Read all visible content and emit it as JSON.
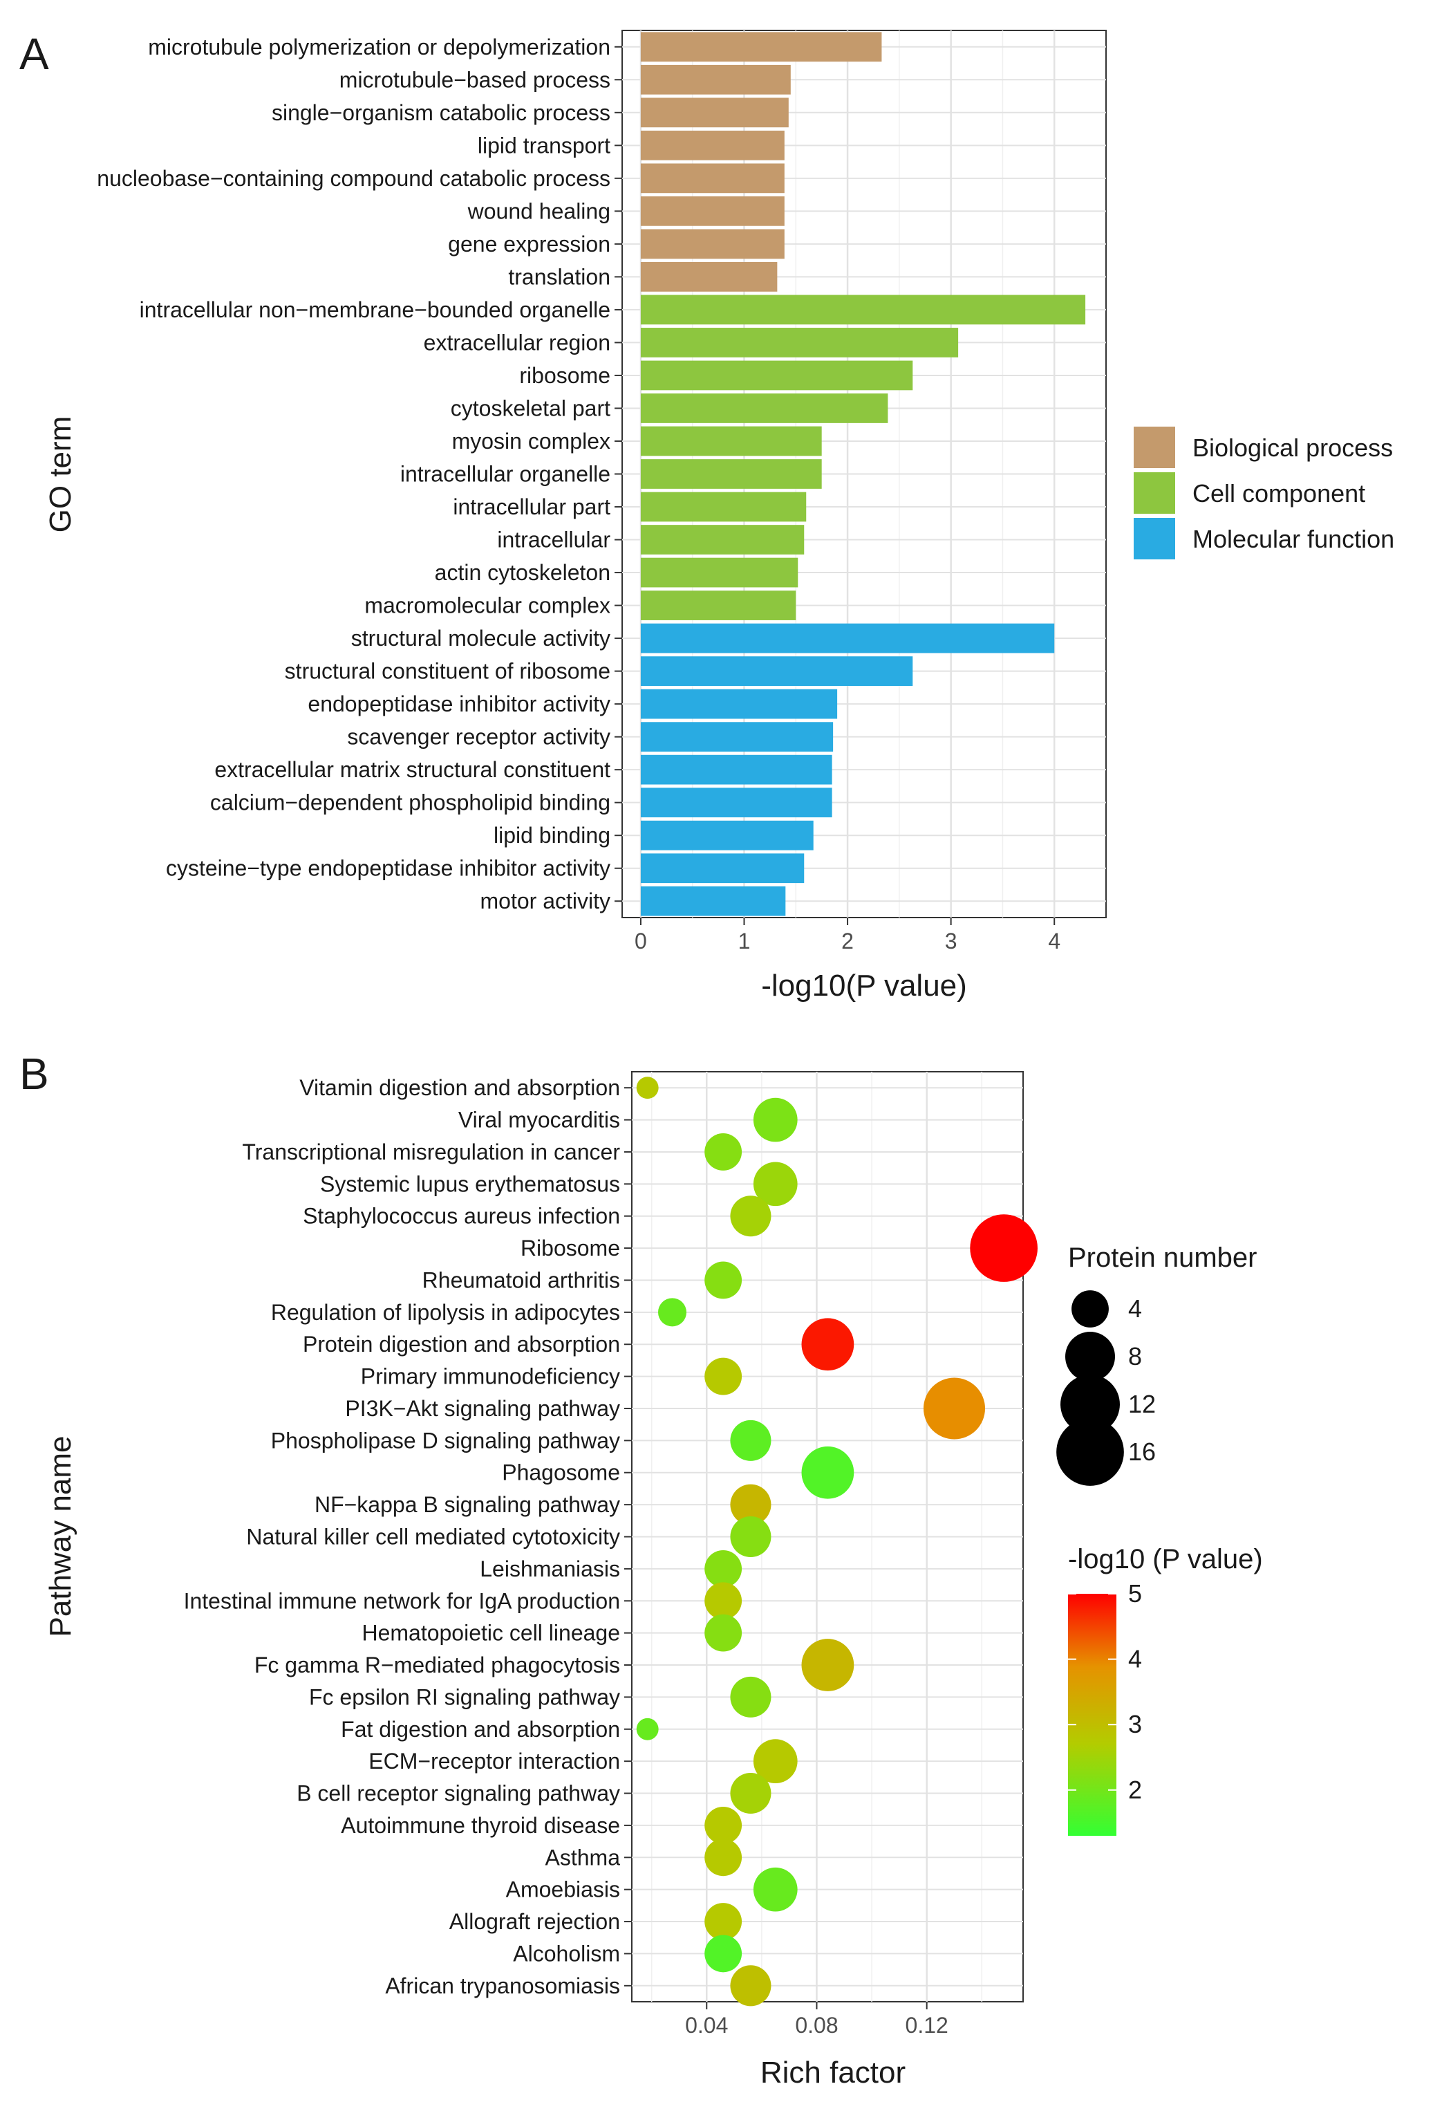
{
  "panels": {
    "a": {
      "letter": "A"
    },
    "b": {
      "letter": "B"
    }
  },
  "chart_data": [
    {
      "type": "bar",
      "orientation": "horizontal",
      "xlabel": "-log10(P value)",
      "ylabel": "GO term",
      "xlim": [
        -0.18,
        4.5
      ],
      "xticks": [
        0,
        1,
        2,
        3,
        4
      ],
      "grid": true,
      "legend_position": "right",
      "groups": [
        {
          "name": "Biological process",
          "color": "#c49a6c"
        },
        {
          "name": "Cell component",
          "color": "#8dc63f"
        },
        {
          "name": "Molecular function",
          "color": "#29abe2"
        }
      ],
      "bars": [
        {
          "label": "microtubule polymerization or depolymerization",
          "value": 2.33,
          "group": "Biological process"
        },
        {
          "label": "microtubule-based process",
          "value": 1.45,
          "group": "Biological process"
        },
        {
          "label": "single-organism catabolic process",
          "value": 1.43,
          "group": "Biological process"
        },
        {
          "label": "lipid transport",
          "value": 1.39,
          "group": "Biological process"
        },
        {
          "label": "nucleobase-containing compound catabolic process",
          "value": 1.39,
          "group": "Biological process"
        },
        {
          "label": "wound healing",
          "value": 1.39,
          "group": "Biological process"
        },
        {
          "label": "gene expression",
          "value": 1.39,
          "group": "Biological process"
        },
        {
          "label": "translation",
          "value": 1.32,
          "group": "Biological process"
        },
        {
          "label": "intracellular non-membrane-bounded organelle",
          "value": 4.3,
          "group": "Cell component"
        },
        {
          "label": "extracellular region",
          "value": 3.07,
          "group": "Cell component"
        },
        {
          "label": "ribosome",
          "value": 2.63,
          "group": "Cell component"
        },
        {
          "label": "cytoskeletal part",
          "value": 2.39,
          "group": "Cell component"
        },
        {
          "label": "myosin complex",
          "value": 1.75,
          "group": "Cell component"
        },
        {
          "label": "intracellular organelle",
          "value": 1.75,
          "group": "Cell component"
        },
        {
          "label": "intracellular part",
          "value": 1.6,
          "group": "Cell component"
        },
        {
          "label": "intracellular",
          "value": 1.58,
          "group": "Cell component"
        },
        {
          "label": "actin cytoskeleton",
          "value": 1.52,
          "group": "Cell component"
        },
        {
          "label": "macromolecular complex",
          "value": 1.5,
          "group": "Cell component"
        },
        {
          "label": "structural molecule activity",
          "value": 4.0,
          "group": "Molecular function"
        },
        {
          "label": "structural constituent of ribosome",
          "value": 2.63,
          "group": "Molecular function"
        },
        {
          "label": "endopeptidase inhibitor activity",
          "value": 1.9,
          "group": "Molecular function"
        },
        {
          "label": "scavenger receptor activity",
          "value": 1.86,
          "group": "Molecular function"
        },
        {
          "label": "extracellular matrix structural constituent",
          "value": 1.85,
          "group": "Molecular function"
        },
        {
          "label": "calcium-dependent phospholipid binding",
          "value": 1.85,
          "group": "Molecular function"
        },
        {
          "label": "lipid binding",
          "value": 1.67,
          "group": "Molecular function"
        },
        {
          "label": "cysteine-type endopeptidase inhibitor activity",
          "value": 1.58,
          "group": "Molecular function"
        },
        {
          "label": "motor activity",
          "value": 1.4,
          "group": "Molecular function"
        }
      ]
    },
    {
      "type": "scatter",
      "xlabel": "Rich factor",
      "ylabel": "Pathway name",
      "xlim": [
        0.0128,
        0.155
      ],
      "xticks": [
        0.04,
        0.08,
        0.12
      ],
      "grid": true,
      "size_legend": {
        "title": "Protein number",
        "values": [
          4,
          8,
          12,
          16
        ]
      },
      "color_legend": {
        "title": "-log10 (P value)",
        "min": 1.3,
        "max": 5,
        "ticks": [
          2,
          3,
          4,
          5
        ],
        "colors": [
          "#33ff33",
          "#b3cc00",
          "#e69200",
          "#ff0000"
        ]
      },
      "points": [
        {
          "pathway": "Vitamin digestion and absorption",
          "rich_factor": 0.0185,
          "protein_number": 1,
          "neg_log10_p": 2.6
        },
        {
          "pathway": "Viral myocarditis",
          "rich_factor": 0.065,
          "protein_number": 6,
          "neg_log10_p": 2.0
        },
        {
          "pathway": "Transcriptional misregulation in cancer",
          "rich_factor": 0.046,
          "protein_number": 4,
          "neg_log10_p": 2.1
        },
        {
          "pathway": "Systemic lupus erythematosus",
          "rich_factor": 0.065,
          "protein_number": 6,
          "neg_log10_p": 2.3
        },
        {
          "pathway": "Staphylococcus aureus infection",
          "rich_factor": 0.056,
          "protein_number": 5,
          "neg_log10_p": 2.4
        },
        {
          "pathway": "Ribosome",
          "rich_factor": 0.148,
          "protein_number": 16,
          "neg_log10_p": 5.0
        },
        {
          "pathway": "Rheumatoid arthritis",
          "rich_factor": 0.046,
          "protein_number": 4,
          "neg_log10_p": 2.1
        },
        {
          "pathway": "Regulation of lipolysis in adipocytes",
          "rich_factor": 0.0275,
          "protein_number": 2,
          "neg_log10_p": 1.8
        },
        {
          "pathway": "Protein digestion and absorption",
          "rich_factor": 0.084,
          "protein_number": 9,
          "neg_log10_p": 4.8
        },
        {
          "pathway": "Primary immunodeficiency",
          "rich_factor": 0.046,
          "protein_number": 4,
          "neg_log10_p": 2.6
        },
        {
          "pathway": "PI3K-Akt signaling pathway",
          "rich_factor": 0.13,
          "protein_number": 13,
          "neg_log10_p": 3.8
        },
        {
          "pathway": "Phospholipase D signaling pathway",
          "rich_factor": 0.056,
          "protein_number": 5,
          "neg_log10_p": 1.7
        },
        {
          "pathway": "Phagosome",
          "rich_factor": 0.084,
          "protein_number": 9,
          "neg_log10_p": 1.6
        },
        {
          "pathway": "NF-kappa B signaling pathway",
          "rich_factor": 0.056,
          "protein_number": 5,
          "neg_log10_p": 3.0
        },
        {
          "pathway": "Natural killer cell mediated cytotoxicity",
          "rich_factor": 0.056,
          "protein_number": 5,
          "neg_log10_p": 2.1
        },
        {
          "pathway": "Leishmaniasis",
          "rich_factor": 0.046,
          "protein_number": 4,
          "neg_log10_p": 2.1
        },
        {
          "pathway": "Intestinal immune network for IgA production",
          "rich_factor": 0.046,
          "protein_number": 4,
          "neg_log10_p": 2.6
        },
        {
          "pathway": "Hematopoietic cell lineage",
          "rich_factor": 0.046,
          "protein_number": 4,
          "neg_log10_p": 2.1
        },
        {
          "pathway": "Fc gamma R-mediated phagocytosis",
          "rich_factor": 0.084,
          "protein_number": 9,
          "neg_log10_p": 3.0
        },
        {
          "pathway": "Fc epsilon RI signaling pathway",
          "rich_factor": 0.056,
          "protein_number": 5,
          "neg_log10_p": 2.1
        },
        {
          "pathway": "Fat digestion and absorption",
          "rich_factor": 0.0185,
          "protein_number": 1,
          "neg_log10_p": 1.8
        },
        {
          "pathway": "ECM-receptor interaction",
          "rich_factor": 0.065,
          "protein_number": 6,
          "neg_log10_p": 2.6
        },
        {
          "pathway": "B cell receptor signaling pathway",
          "rich_factor": 0.056,
          "protein_number": 5,
          "neg_log10_p": 2.4
        },
        {
          "pathway": "Autoimmune thyroid disease",
          "rich_factor": 0.046,
          "protein_number": 4,
          "neg_log10_p": 2.6
        },
        {
          "pathway": "Asthma",
          "rich_factor": 0.046,
          "protein_number": 4,
          "neg_log10_p": 2.6
        },
        {
          "pathway": "Amoebiasis",
          "rich_factor": 0.065,
          "protein_number": 6,
          "neg_log10_p": 1.8
        },
        {
          "pathway": "Allograft rejection",
          "rich_factor": 0.046,
          "protein_number": 4,
          "neg_log10_p": 2.6
        },
        {
          "pathway": "Alcoholism",
          "rich_factor": 0.046,
          "protein_number": 4,
          "neg_log10_p": 1.6
        },
        {
          "pathway": "African trypanosomiasis",
          "rich_factor": 0.056,
          "protein_number": 5,
          "neg_log10_p": 2.8
        }
      ]
    }
  ]
}
